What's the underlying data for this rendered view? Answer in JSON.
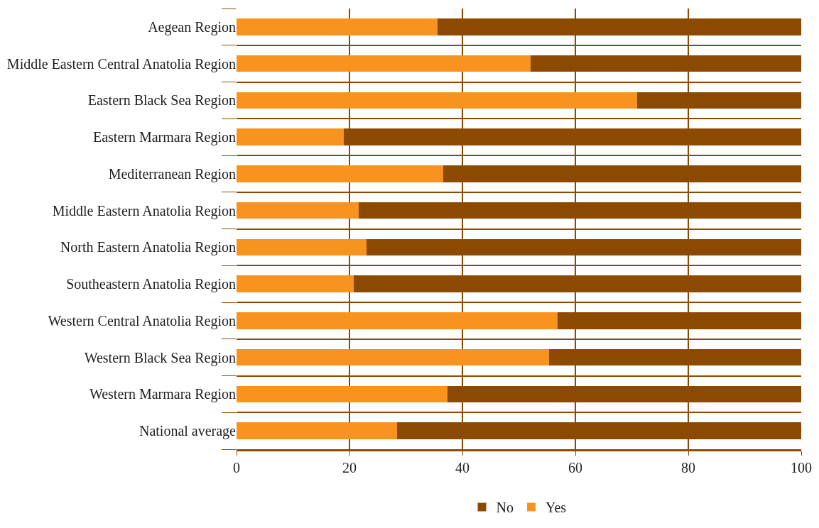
{
  "chart_data": {
    "type": "bar",
    "orientation": "horizontal",
    "stacked": true,
    "categories": [
      "Aegean Region",
      "Middle Eastern Central Anatolia Region",
      "Eastern Black Sea Region",
      "Eastern Marmara Region",
      "Mediterranean Region",
      "Middle Eastern Anatolia Region",
      "North Eastern Anatolia Region",
      "Southeastern Anatolia Region",
      "Western Central Anatolia Region",
      "Western Black Sea Region",
      "Western Marmara Region",
      "National average"
    ],
    "series": [
      {
        "name": "Yes",
        "color": "#f7931e",
        "values": [
          35.6,
          52.1,
          70.9,
          19.0,
          36.6,
          21.6,
          23.0,
          20.7,
          56.8,
          55.3,
          37.4,
          28.4
        ]
      },
      {
        "name": "No",
        "color": "#8b4a00",
        "values": [
          64.4,
          47.9,
          29.1,
          81.0,
          63.4,
          78.4,
          77.0,
          79.3,
          43.2,
          44.7,
          62.6,
          71.6
        ]
      }
    ],
    "xlim": [
      0,
      100
    ],
    "xticks": [
      0,
      20,
      40,
      60,
      80,
      100
    ],
    "grid": true,
    "legend": "bottom"
  }
}
